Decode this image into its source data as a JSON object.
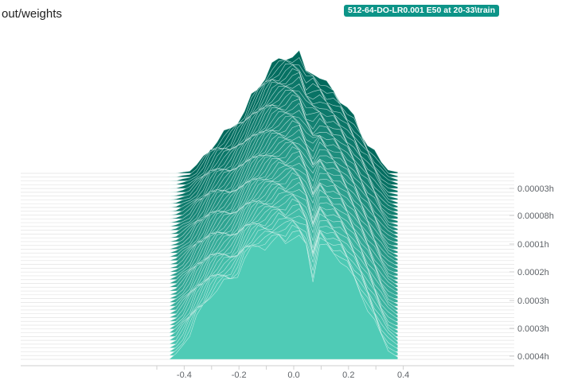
{
  "header": {
    "title": "out/weights",
    "run_tag": "512-64-DO-LR0.001 E50 at 20-33\\train"
  },
  "colors": {
    "back": "#00695c",
    "front": "#4fcbb6",
    "stroke": "#e7f7f3",
    "tag": "#0d9488"
  },
  "chart_data": {
    "type": "area",
    "subtype": "offset-histogram",
    "title": "out/weights",
    "xlim": [
      -0.5,
      0.4
    ],
    "x_ticks": [
      "-0.4",
      "-0.2",
      "0.0",
      "0.2",
      "0.4"
    ],
    "x_tick_values": [
      -0.4,
      -0.2,
      0.0,
      0.2,
      0.4
    ],
    "y_ticks": [
      "0.00003h",
      "0.00008h",
      "0.0001h",
      "0.0002h",
      "0.0003h",
      "0.0003h",
      "0.0004h"
    ],
    "slice_count": 50,
    "x_range": [
      -0.455,
      0.38
    ],
    "x_bins": [
      -0.455,
      -0.43,
      -0.405,
      -0.38,
      -0.355,
      -0.33,
      -0.305,
      -0.28,
      -0.255,
      -0.23,
      -0.205,
      -0.18,
      -0.155,
      -0.13,
      -0.105,
      -0.08,
      -0.055,
      -0.03,
      -0.005,
      0.02,
      0.045,
      0.07,
      0.095,
      0.12,
      0.145,
      0.17,
      0.195,
      0.22,
      0.245,
      0.27,
      0.295,
      0.32,
      0.345,
      0.38
    ],
    "first_slice_counts": [
      0.0,
      0.2,
      0.6,
      1.1,
      1.7,
      2.1,
      2.6,
      2.9,
      3.1,
      3.2,
      3.5,
      4.1,
      4.4,
      4.6,
      4.6,
      4.7,
      4.9,
      4.8,
      5.0,
      4.9,
      4.6,
      3.3,
      4.7,
      4.5,
      4.3,
      4.1,
      3.7,
      3.2,
      2.7,
      2.1,
      1.5,
      0.9,
      0.4,
      0.1
    ],
    "last_slice_counts": [
      0.0,
      0.0,
      0.05,
      0.1,
      0.3,
      0.6,
      1.0,
      1.3,
      1.5,
      1.7,
      2.1,
      2.4,
      2.9,
      3.3,
      3.8,
      4.2,
      4.3,
      4.5,
      4.6,
      4.6,
      3.9,
      4.0,
      3.7,
      3.4,
      3.2,
      2.9,
      2.5,
      2.1,
      1.6,
      1.2,
      0.8,
      0.4,
      0.15,
      0.05
    ]
  }
}
